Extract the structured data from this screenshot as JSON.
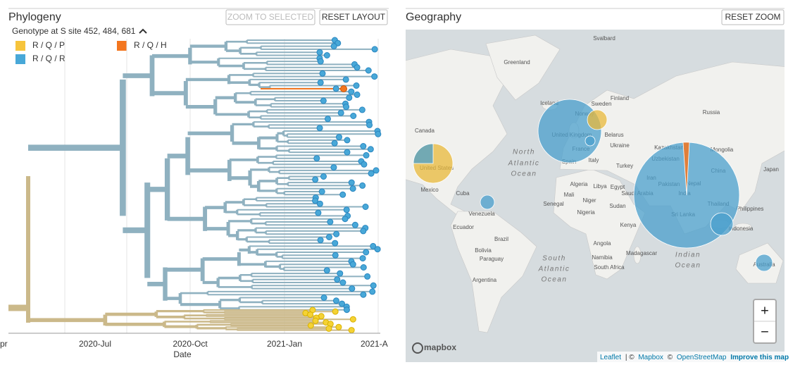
{
  "phylogeny": {
    "title": "Phylogeny",
    "buttons": [
      "ZOOM TO SELECTED",
      "RESET LAYOUT"
    ],
    "color_by": "Genotype at S site 452, 484, 681",
    "legend": [
      "R / Q / P",
      "R / Q / H",
      "R / Q / R"
    ],
    "x_axis": {
      "ticks": [
        "Apr",
        "2020-Jul",
        "2020-Oct",
        "2021-Jan",
        "2021-A"
      ],
      "label": "Date"
    }
  },
  "geography": {
    "title": "Geography",
    "button": "RESET ZOOM",
    "zoom": [
      "+",
      "−"
    ],
    "logo": "mapbox",
    "attribution": [
      "Leaflet",
      "| ©",
      "Mapbox",
      "©",
      "OpenStreetMap",
      "Improve this map"
    ],
    "places": [
      "Svalbard",
      "Greenland",
      "Iceland",
      "Sweden",
      "Norway",
      "Finland",
      "Russia",
      "Canada",
      "United Kingdom",
      "France",
      "Belarus",
      "Ukraine",
      "Spain",
      "Italy",
      "Turkey",
      "Kazakhstan",
      "Mongolia",
      "Uzbekistan",
      "China",
      "Japan",
      "Iran",
      "Pakistan",
      "Nepal",
      "India",
      "Thailand",
      "Philippines",
      "Sri Lanka",
      "Indonesia",
      "Australia",
      "United States",
      "Mexico",
      "Cuba",
      "Venezuela",
      "Ecuador",
      "Brazil",
      "Bolivia",
      "Paraguay",
      "Argentina",
      "Algeria",
      "Libya",
      "Egypt",
      "Mali",
      "Niger",
      "Senegal",
      "Nigeria",
      "Sudan",
      "Kenya",
      "Angola",
      "Namibia",
      "South Africa",
      "Madagascar",
      "Saudi Arabia",
      "North",
      "Atlantic",
      "Ocean",
      "South",
      "Atlantic",
      "Ocean",
      "Indian",
      "Ocean"
    ]
  }
}
